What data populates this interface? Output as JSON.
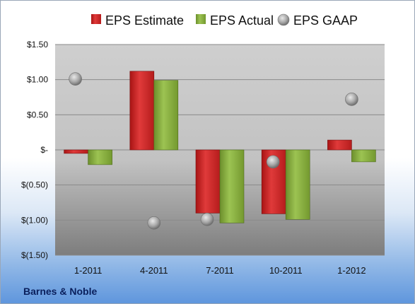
{
  "chart_data": {
    "type": "bar",
    "categories": [
      "1-2011",
      "4-2011",
      "7-2011",
      "10-2011",
      "1-2012"
    ],
    "series": [
      {
        "name": "EPS Estimate",
        "kind": "bar",
        "values": [
          -0.05,
          1.12,
          -0.9,
          -0.91,
          0.14
        ],
        "color": "#d42a2a"
      },
      {
        "name": "EPS Actual",
        "kind": "bar",
        "values": [
          -0.21,
          0.99,
          -1.04,
          -0.99,
          -0.17
        ],
        "color": "#8db443"
      },
      {
        "name": "EPS GAAP",
        "kind": "scatter",
        "values": [
          1.01,
          -1.04,
          -0.99,
          -0.17,
          0.72
        ],
        "color": "#9a9a9a"
      }
    ],
    "yticks": [
      1.5,
      1.0,
      0.5,
      0,
      -0.5,
      -1.0,
      -1.5
    ],
    "ytick_labels": [
      "$1.50",
      "$1.00",
      "$0.50",
      "$-",
      "$(0.50)",
      "$(1.00)",
      "$(1.50)"
    ],
    "ylim": [
      -1.5,
      1.5
    ],
    "grid": true,
    "legend": "top",
    "source_label": "Barnes & Noble"
  }
}
